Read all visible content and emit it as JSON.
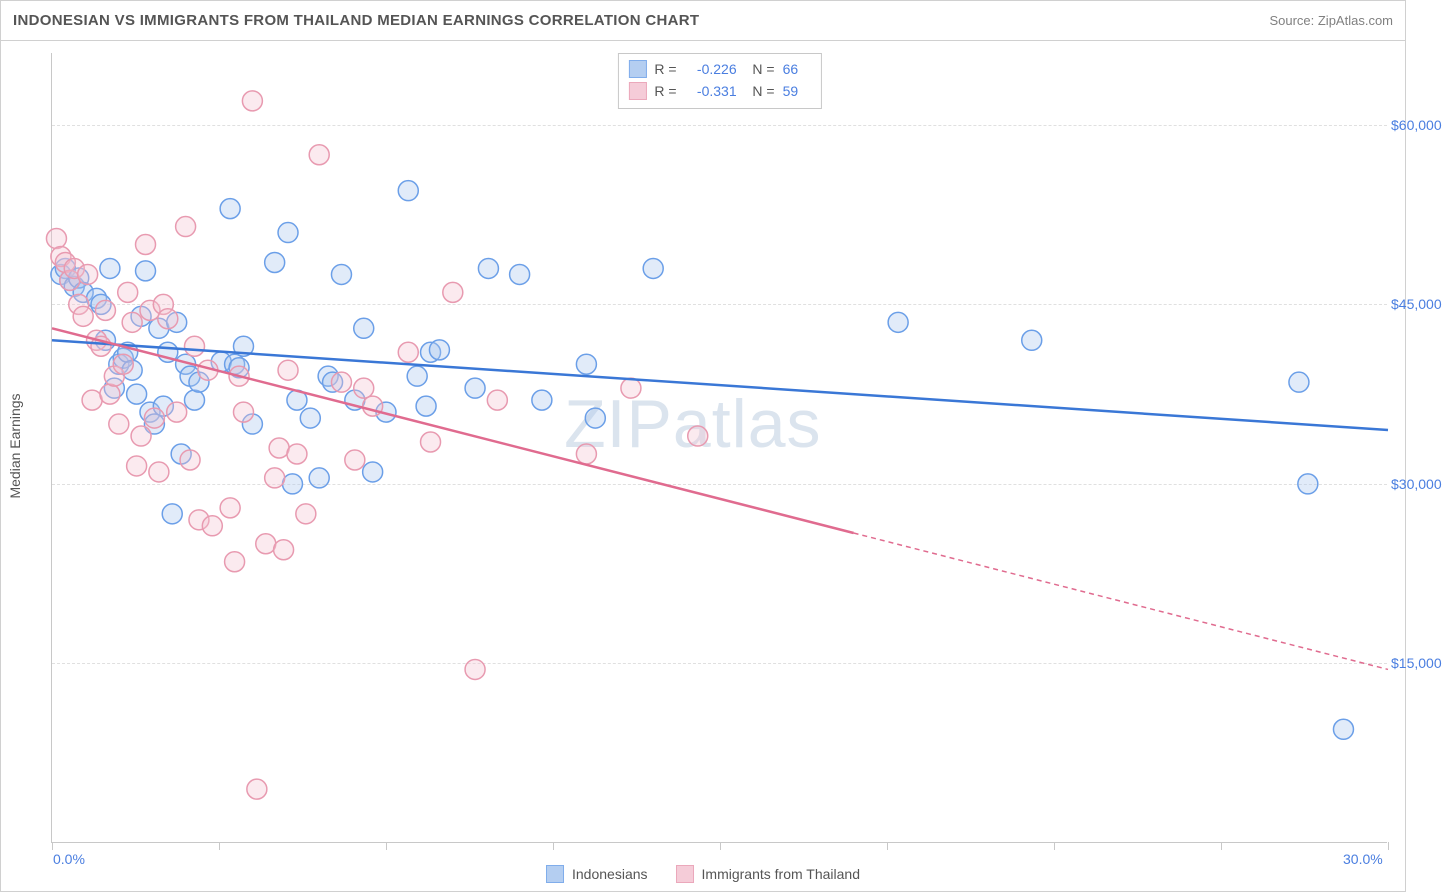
{
  "title": "INDONESIAN VS IMMIGRANTS FROM THAILAND MEDIAN EARNINGS CORRELATION CHART",
  "source": "Source: ZipAtlas.com",
  "ylabel": "Median Earnings",
  "watermark_a": "ZIP",
  "watermark_b": "atlas",
  "chart": {
    "type": "scatter-with-regression",
    "background_color": "#ffffff",
    "grid_color": "#e0e0e0",
    "axis_color": "#c8c8c8",
    "label_color": "#4a7ee0",
    "text_color": "#555555",
    "title_fontsize": 15,
    "label_fontsize": 14,
    "marker_radius": 10,
    "marker_stroke_width": 1.5,
    "marker_fill_opacity": 0.35,
    "regression_line_width": 2.5,
    "xlim": [
      0,
      30
    ],
    "ylim": [
      0,
      66000
    ],
    "x_axis_label_left": "0.0%",
    "x_axis_label_right": "30.0%",
    "x_ticks": [
      0,
      3.75,
      7.5,
      11.25,
      15,
      18.75,
      22.5,
      26.25,
      30
    ],
    "y_ticks": [
      {
        "value": 15000,
        "label": "$15,000"
      },
      {
        "value": 30000,
        "label": "$30,000"
      },
      {
        "value": 45000,
        "label": "$45,000"
      },
      {
        "value": 60000,
        "label": "$60,000"
      }
    ],
    "series": [
      {
        "name": "Indonesians",
        "color_stroke": "#6b9fe8",
        "color_fill": "#a8c6ef",
        "line_color": "#3a77d6",
        "R": "-0.226",
        "N": "66",
        "regression": {
          "x1": 0,
          "y1": 42000,
          "x2": 30,
          "y2": 34500,
          "solid_until_x": 30
        },
        "points": [
          [
            0.2,
            47500
          ],
          [
            0.3,
            48000
          ],
          [
            0.4,
            47000
          ],
          [
            0.5,
            46500
          ],
          [
            0.6,
            47200
          ],
          [
            0.7,
            46000
          ],
          [
            1.0,
            45500
          ],
          [
            1.1,
            45000
          ],
          [
            1.2,
            42000
          ],
          [
            1.3,
            48000
          ],
          [
            1.4,
            38000
          ],
          [
            1.5,
            40000
          ],
          [
            1.6,
            40500
          ],
          [
            1.7,
            41000
          ],
          [
            1.8,
            39500
          ],
          [
            1.9,
            37500
          ],
          [
            2.0,
            44000
          ],
          [
            2.1,
            47800
          ],
          [
            2.2,
            36000
          ],
          [
            2.3,
            35000
          ],
          [
            2.4,
            43000
          ],
          [
            2.5,
            36500
          ],
          [
            2.6,
            41000
          ],
          [
            2.7,
            27500
          ],
          [
            2.8,
            43500
          ],
          [
            2.9,
            32500
          ],
          [
            3.0,
            40000
          ],
          [
            3.1,
            39000
          ],
          [
            3.2,
            37000
          ],
          [
            3.3,
            38500
          ],
          [
            3.8,
            40200
          ],
          [
            4.0,
            53000
          ],
          [
            4.1,
            40000
          ],
          [
            4.2,
            39700
          ],
          [
            4.3,
            41500
          ],
          [
            4.5,
            35000
          ],
          [
            5.0,
            48500
          ],
          [
            5.3,
            51000
          ],
          [
            5.4,
            30000
          ],
          [
            5.5,
            37000
          ],
          [
            5.8,
            35500
          ],
          [
            6.0,
            30500
          ],
          [
            6.2,
            39000
          ],
          [
            6.3,
            38500
          ],
          [
            6.5,
            47500
          ],
          [
            6.8,
            37000
          ],
          [
            7.0,
            43000
          ],
          [
            7.2,
            31000
          ],
          [
            7.5,
            36000
          ],
          [
            8.0,
            54500
          ],
          [
            8.2,
            39000
          ],
          [
            8.4,
            36500
          ],
          [
            8.5,
            41000
          ],
          [
            8.7,
            41200
          ],
          [
            9.5,
            38000
          ],
          [
            9.8,
            48000
          ],
          [
            10.5,
            47500
          ],
          [
            11.0,
            37000
          ],
          [
            12.0,
            40000
          ],
          [
            12.2,
            35500
          ],
          [
            13.5,
            48000
          ],
          [
            19.0,
            43500
          ],
          [
            22.0,
            42000
          ],
          [
            28.0,
            38500
          ],
          [
            28.2,
            30000
          ],
          [
            29.0,
            9500
          ]
        ]
      },
      {
        "name": "Immigrants from Thailand",
        "color_stroke": "#e89ab0",
        "color_fill": "#f4c4d2",
        "line_color": "#e06b8f",
        "R": "-0.331",
        "N": "59",
        "regression": {
          "x1": 0,
          "y1": 43000,
          "x2": 30,
          "y2": 14500,
          "solid_until_x": 18
        },
        "points": [
          [
            0.1,
            50500
          ],
          [
            0.2,
            49000
          ],
          [
            0.3,
            48500
          ],
          [
            0.4,
            47000
          ],
          [
            0.5,
            48000
          ],
          [
            0.6,
            45000
          ],
          [
            0.7,
            44000
          ],
          [
            0.8,
            47500
          ],
          [
            0.9,
            37000
          ],
          [
            1.0,
            42000
          ],
          [
            1.1,
            41500
          ],
          [
            1.2,
            44500
          ],
          [
            1.3,
            37500
          ],
          [
            1.4,
            39000
          ],
          [
            1.5,
            35000
          ],
          [
            1.6,
            40000
          ],
          [
            1.7,
            46000
          ],
          [
            1.8,
            43500
          ],
          [
            1.9,
            31500
          ],
          [
            2.0,
            34000
          ],
          [
            2.1,
            50000
          ],
          [
            2.2,
            44500
          ],
          [
            2.3,
            35500
          ],
          [
            2.4,
            31000
          ],
          [
            2.5,
            45000
          ],
          [
            2.6,
            43800
          ],
          [
            2.8,
            36000
          ],
          [
            3.0,
            51500
          ],
          [
            3.1,
            32000
          ],
          [
            3.2,
            41500
          ],
          [
            3.3,
            27000
          ],
          [
            3.5,
            39500
          ],
          [
            3.6,
            26500
          ],
          [
            4.0,
            28000
          ],
          [
            4.1,
            23500
          ],
          [
            4.2,
            39000
          ],
          [
            4.3,
            36000
          ],
          [
            4.5,
            62000
          ],
          [
            4.8,
            25000
          ],
          [
            5.0,
            30500
          ],
          [
            5.1,
            33000
          ],
          [
            5.2,
            24500
          ],
          [
            5.3,
            39500
          ],
          [
            5.5,
            32500
          ],
          [
            5.7,
            27500
          ],
          [
            6.0,
            57500
          ],
          [
            6.5,
            38500
          ],
          [
            6.8,
            32000
          ],
          [
            7.0,
            38000
          ],
          [
            7.2,
            36500
          ],
          [
            8.0,
            41000
          ],
          [
            8.5,
            33500
          ],
          [
            9.0,
            46000
          ],
          [
            9.5,
            14500
          ],
          [
            10.0,
            37000
          ],
          [
            4.6,
            4500
          ],
          [
            12.0,
            32500
          ],
          [
            13.0,
            38000
          ],
          [
            14.5,
            34000
          ]
        ]
      }
    ],
    "bottom_legend": [
      {
        "label": "Indonesians",
        "stroke": "#6b9fe8",
        "fill": "#a8c6ef"
      },
      {
        "label": "Immigrants from Thailand",
        "stroke": "#e89ab0",
        "fill": "#f4c4d2"
      }
    ]
  }
}
